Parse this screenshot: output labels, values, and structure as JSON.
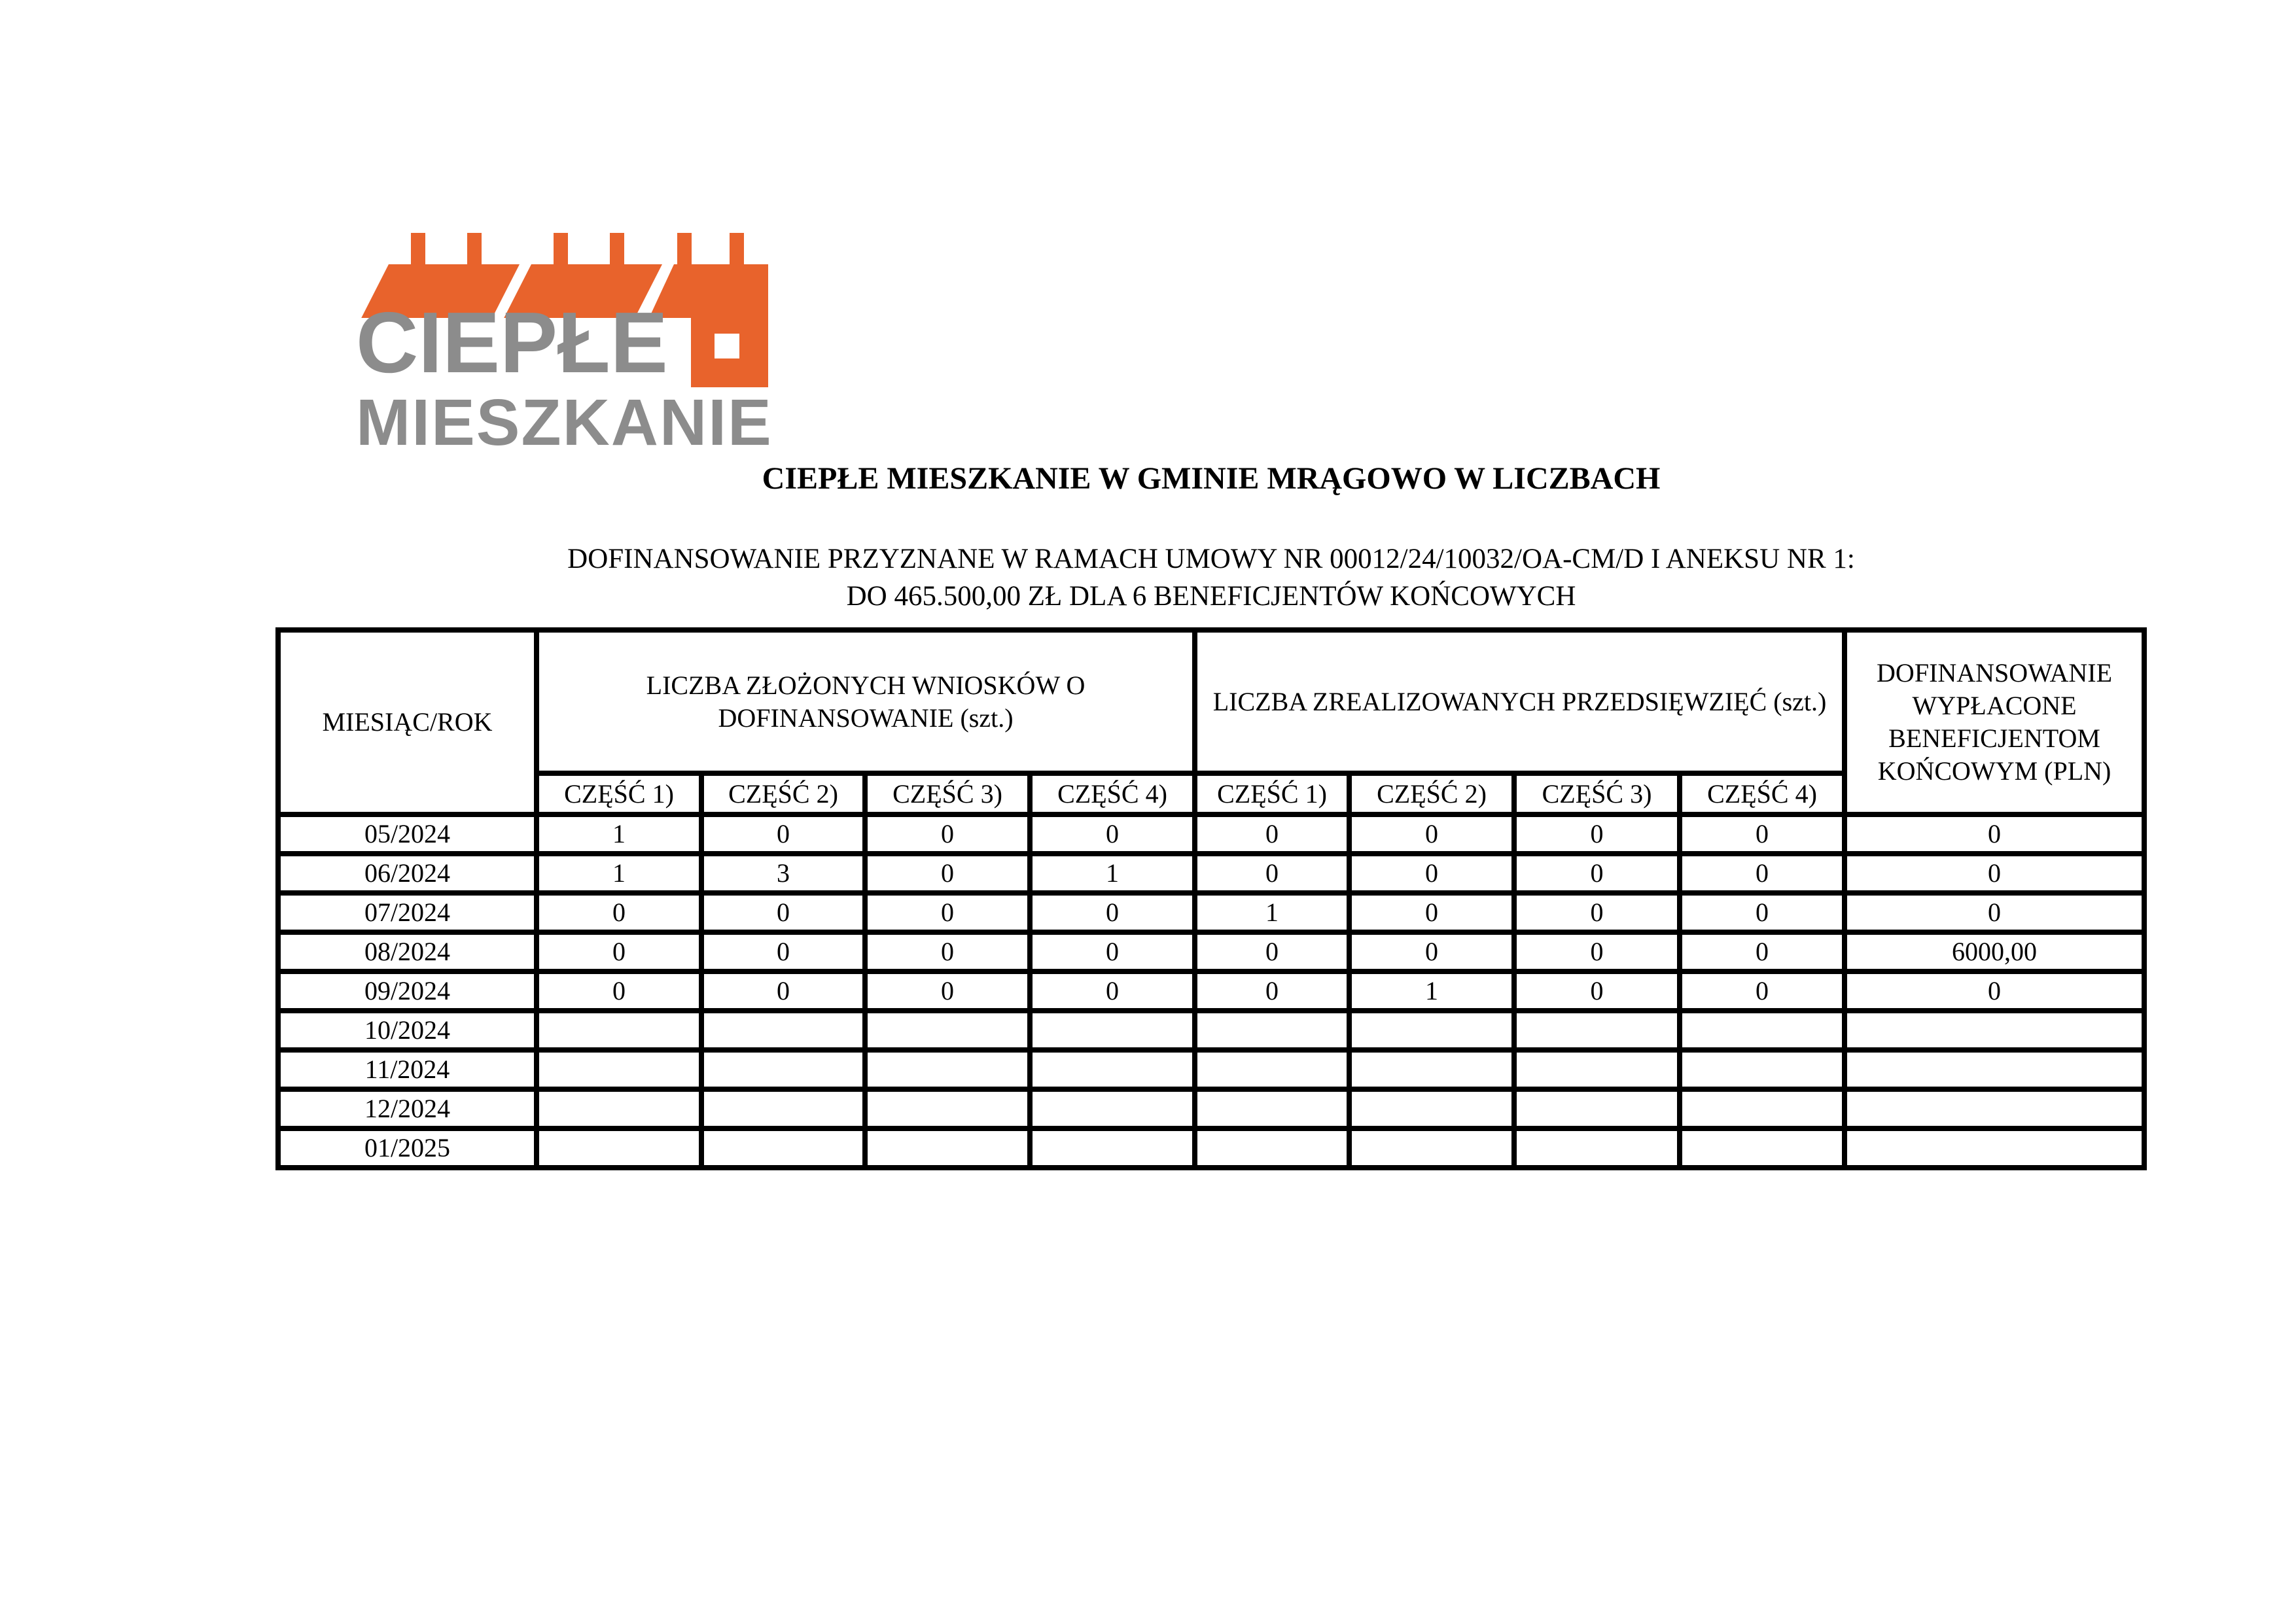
{
  "logo": {
    "line1": "CIEPŁE",
    "line2": "MIESZKANIE",
    "orange": "#E8632C",
    "gray": "#8C8C8C"
  },
  "title": "CIEPŁE MIESZKANIE W GMINIE MRĄGOWO W LICZBACH",
  "subtitle": {
    "line1": "DOFINANSOWANIE PRZYZNANE W RAMACH UMOWY NR 00012/24/10032/OA-CM/D I ANEKSU NR 1:",
    "line2": "DO 465.500,00 ZŁ DLA 6 BENEFICJENTÓW KOŃCOWYCH"
  },
  "table": {
    "col_month": "MIESIĄC/ROK",
    "group1": "LICZBA ZŁOŻONYCH WNIOSKÓW O DOFINANSOWANIE (szt.)",
    "group2": "LICZBA ZREALIZOWANYCH PRZEDSIĘWZIĘĆ (szt.)",
    "col_last": "DOFINANSOWANIE WYPŁACONE BENEFICJENTOM KOŃCOWYM (PLN)",
    "subheaders": [
      "CZĘŚĆ 1)",
      "CZĘŚĆ 2)",
      "CZĘŚĆ 3)",
      "CZĘŚĆ 4)",
      "CZĘŚĆ 1)",
      "CZĘŚĆ 2)",
      "CZĘŚĆ 3)",
      "CZĘŚĆ 4)"
    ],
    "rows": [
      {
        "month": "05/2024",
        "values": [
          "1",
          "0",
          "0",
          "0",
          "0",
          "0",
          "0",
          "0",
          "0"
        ]
      },
      {
        "month": "06/2024",
        "values": [
          "1",
          "3",
          "0",
          "1",
          "0",
          "0",
          "0",
          "0",
          "0"
        ]
      },
      {
        "month": "07/2024",
        "values": [
          "0",
          "0",
          "0",
          "0",
          "1",
          "0",
          "0",
          "0",
          "0"
        ]
      },
      {
        "month": "08/2024",
        "values": [
          "0",
          "0",
          "0",
          "0",
          "0",
          "0",
          "0",
          "0",
          "6000,00"
        ]
      },
      {
        "month": "09/2024",
        "values": [
          "0",
          "0",
          "0",
          "0",
          "0",
          "1",
          "0",
          "0",
          "0"
        ]
      },
      {
        "month": "10/2024",
        "values": [
          "",
          "",
          "",
          "",
          "",
          "",
          "",
          "",
          ""
        ]
      },
      {
        "month": "11/2024",
        "values": [
          "",
          "",
          "",
          "",
          "",
          "",
          "",
          "",
          ""
        ]
      },
      {
        "month": "12/2024",
        "values": [
          "",
          "",
          "",
          "",
          "",
          "",
          "",
          "",
          ""
        ]
      },
      {
        "month": "01/2025",
        "values": [
          "",
          "",
          "",
          "",
          "",
          "",
          "",
          "",
          ""
        ]
      }
    ]
  }
}
